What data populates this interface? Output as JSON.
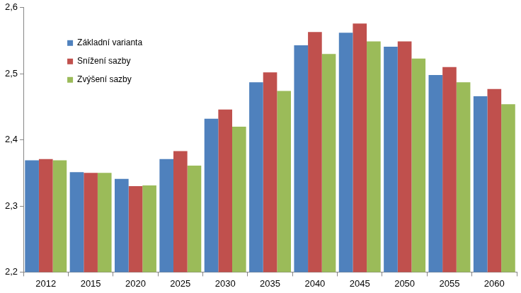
{
  "chart_data": {
    "type": "bar",
    "categories": [
      "2012",
      "2015",
      "2020",
      "2025",
      "2030",
      "2035",
      "2040",
      "2045",
      "2050",
      "2055",
      "2060"
    ],
    "series": [
      {
        "name": "Základní varianta",
        "color": "#4f81bd",
        "values": [
          2.369,
          2.351,
          2.341,
          2.371,
          2.432,
          2.487,
          2.543,
          2.562,
          2.541,
          2.498,
          2.466
        ]
      },
      {
        "name": "Snížení sazby",
        "color": "#c0504d",
        "values": [
          2.371,
          2.35,
          2.33,
          2.383,
          2.446,
          2.502,
          2.563,
          2.576,
          2.549,
          2.51,
          2.477
        ]
      },
      {
        "name": "Zvýšení sazby",
        "color": "#9bbb59",
        "values": [
          2.369,
          2.35,
          2.331,
          2.361,
          2.42,
          2.474,
          2.53,
          2.549,
          2.523,
          2.487,
          2.454
        ]
      }
    ],
    "ylim": [
      2.2,
      2.6
    ],
    "yticks": [
      {
        "value": 2.2,
        "label": "2,2"
      },
      {
        "value": 2.3,
        "label": "2,3"
      },
      {
        "value": 2.4,
        "label": "2,4"
      },
      {
        "value": 2.5,
        "label": "2,5"
      },
      {
        "value": 2.6,
        "label": "2,6"
      }
    ],
    "grid": false,
    "legend": "upper left"
  }
}
